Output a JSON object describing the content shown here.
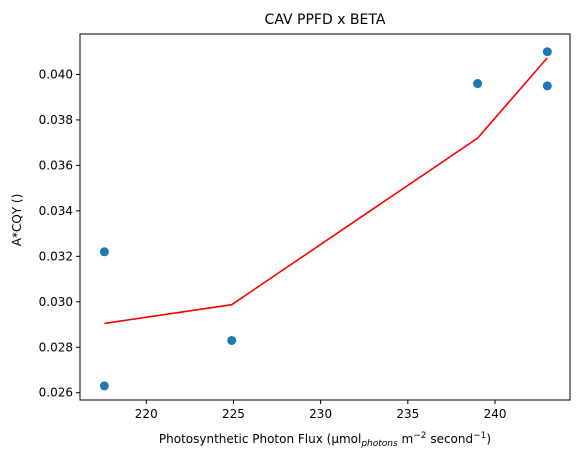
{
  "chart_data": {
    "type": "scatter",
    "title": "CAV PPFD x BETA",
    "xlabel": {
      "prefix": "Photosynthetic Photon Flux (µmol",
      "subscript": "photons",
      "mid1": " m",
      "sup1": "−2",
      "mid2": " second",
      "sup2": "−1",
      "suffix": ")"
    },
    "ylabel": "A*CQY ()",
    "xlim": [
      216.2,
      244.3
    ],
    "ylim": [
      0.02568,
      0.04178
    ],
    "xticks": [
      220,
      225,
      230,
      235,
      240
    ],
    "xtick_labels": [
      "220",
      "225",
      "230",
      "235",
      "240"
    ],
    "yticks": [
      0.026,
      0.028,
      0.03,
      0.032,
      0.034,
      0.036,
      0.038,
      0.04
    ],
    "ytick_labels": [
      "0.026",
      "0.028",
      "0.030",
      "0.032",
      "0.034",
      "0.036",
      "0.038",
      "0.040"
    ],
    "grid": false,
    "series": [
      {
        "type": "scatter",
        "color": "#1f77b4",
        "points": [
          {
            "x": 217.6,
            "y": 0.0322
          },
          {
            "x": 217.6,
            "y": 0.0263
          },
          {
            "x": 224.9,
            "y": 0.0283
          },
          {
            "x": 239.0,
            "y": 0.0396
          },
          {
            "x": 243.0,
            "y": 0.041
          },
          {
            "x": 243.0,
            "y": 0.0395
          }
        ]
      },
      {
        "type": "line",
        "color": "#ff0000",
        "points": [
          {
            "x": 217.6,
            "y": 0.02905
          },
          {
            "x": 224.9,
            "y": 0.02987
          },
          {
            "x": 239.0,
            "y": 0.0372
          },
          {
            "x": 243.0,
            "y": 0.04073
          }
        ]
      }
    ]
  }
}
